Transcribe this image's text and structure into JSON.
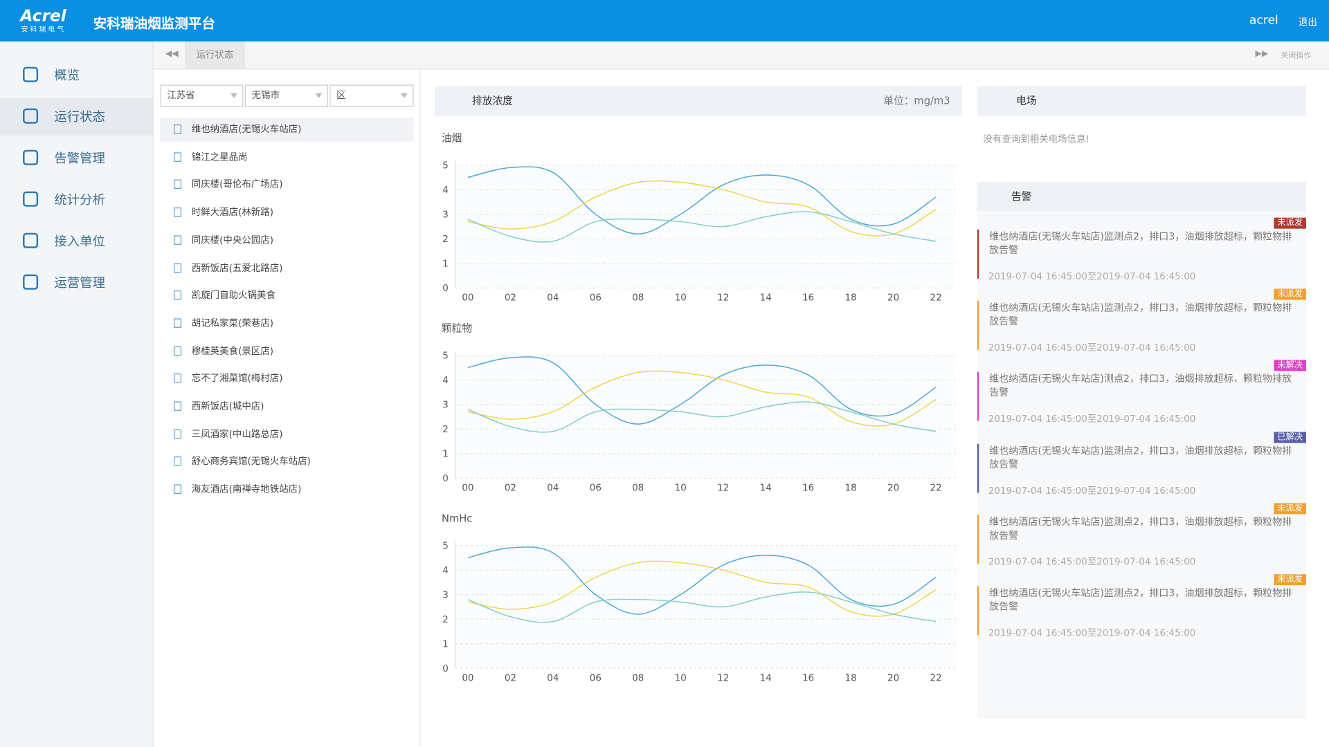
{
  "header": {
    "logo": "Acrel",
    "logo_sub": "安 科 瑞 电 气",
    "title": "安科瑞油烟监测平台",
    "user": "acrel",
    "logout": "退出"
  },
  "nav": [
    "概览",
    "运行状态",
    "告警管理",
    "统计分析",
    "接入单位",
    "运营管理"
  ],
  "tabs": {
    "current": "运行状态",
    "close": "关闭操作"
  },
  "filters": [
    "江苏省",
    "无锡市",
    "区"
  ],
  "sites": [
    "维也纳酒店(无锡火车站店)",
    "锦江之星品尚",
    "同庆楼(哥伦布广场店)",
    "时鲜大酒店(林新路)",
    "同庆楼(中央公园店)",
    "西新饭店(五爱北路店)",
    "凯旋门自助火锅美食",
    "胡记私家菜(荣巷店)",
    "穆桂英美食(景区店)",
    "忘不了湘菜馆(梅村店)",
    "西新饭店(城中店)",
    "三凤酒家(中山路总店)",
    "舒心商务宾馆(无锡火车站店)",
    "海友酒店(南禅寺地铁站店)"
  ],
  "emission": {
    "title": "排放浓度",
    "unit": "单位：mg/m3"
  },
  "chart_data": [
    {
      "type": "line",
      "title": "油烟",
      "categories": [
        "00",
        "02",
        "04",
        "06",
        "08",
        "10",
        "12",
        "14",
        "16",
        "18",
        "20",
        "22"
      ],
      "ylim": [
        0,
        5
      ],
      "yticks": [
        0,
        1,
        2,
        3,
        4,
        5
      ],
      "grid": true,
      "series": [
        {
          "color": "#4aa8d8",
          "values": [
            4.5,
            4.9,
            4.7,
            3.0,
            2.2,
            3.0,
            4.2,
            4.6,
            4.2,
            2.8,
            2.6,
            3.7
          ]
        },
        {
          "color": "#f0d44a",
          "values": [
            2.7,
            2.4,
            2.7,
            3.7,
            4.3,
            4.3,
            4.0,
            3.5,
            3.3,
            2.3,
            2.2,
            3.2
          ]
        },
        {
          "color": "#7fd0c8",
          "values": [
            2.8,
            2.1,
            1.9,
            2.7,
            2.8,
            2.7,
            2.5,
            2.9,
            3.1,
            2.7,
            2.2,
            1.9
          ]
        }
      ]
    },
    {
      "type": "line",
      "title": "颗粒物",
      "categories": [
        "00",
        "02",
        "04",
        "06",
        "08",
        "10",
        "12",
        "14",
        "16",
        "18",
        "20",
        "22"
      ],
      "ylim": [
        0,
        5
      ],
      "yticks": [
        0,
        1,
        2,
        3,
        4,
        5
      ],
      "grid": true,
      "series": [
        {
          "color": "#4aa8d8",
          "values": [
            4.5,
            4.9,
            4.7,
            3.0,
            2.2,
            3.0,
            4.2,
            4.6,
            4.2,
            2.8,
            2.6,
            3.7
          ]
        },
        {
          "color": "#f0d44a",
          "values": [
            2.7,
            2.4,
            2.7,
            3.7,
            4.3,
            4.3,
            4.0,
            3.5,
            3.3,
            2.3,
            2.2,
            3.2
          ]
        },
        {
          "color": "#7fd0c8",
          "values": [
            2.8,
            2.1,
            1.9,
            2.7,
            2.8,
            2.7,
            2.5,
            2.9,
            3.1,
            2.7,
            2.2,
            1.9
          ]
        }
      ]
    },
    {
      "type": "line",
      "title": "NmHc",
      "categories": [
        "00",
        "02",
        "04",
        "06",
        "08",
        "10",
        "12",
        "14",
        "16",
        "18",
        "20",
        "22"
      ],
      "ylim": [
        0,
        5
      ],
      "yticks": [
        0,
        1,
        2,
        3,
        4,
        5
      ],
      "grid": true,
      "series": [
        {
          "color": "#4aa8d8",
          "values": [
            4.5,
            4.9,
            4.7,
            3.0,
            2.2,
            3.0,
            4.2,
            4.6,
            4.2,
            2.8,
            2.6,
            3.7
          ]
        },
        {
          "color": "#f0d44a",
          "values": [
            2.7,
            2.4,
            2.7,
            3.7,
            4.3,
            4.3,
            4.0,
            3.5,
            3.3,
            2.3,
            2.2,
            3.2
          ]
        },
        {
          "color": "#7fd0c8",
          "values": [
            2.8,
            2.1,
            1.9,
            2.7,
            2.8,
            2.7,
            2.5,
            2.9,
            3.1,
            2.7,
            2.2,
            1.9
          ]
        }
      ]
    }
  ],
  "power": {
    "title": "电场",
    "empty": "没有查询到相关电场信息!"
  },
  "alarms": {
    "title": "告警",
    "items": [
      {
        "status": "未派发",
        "color": "#b03a2e",
        "text": "维也纳酒店(无锡火车站店)监测点2，排口3，油烟排放超标，颗粒物排放告警",
        "time": "2019-07-04 16:45:00至2019-07-04 16:45:00"
      },
      {
        "status": "未派发",
        "color": "#f0a030",
        "text": "维也纳酒店(无锡火车站店)监测点2，排口3，油烟排放超标，颗粒物排放告警",
        "time": "2019-07-04 16:45:00至2019-07-04 16:45:00"
      },
      {
        "status": "未解决",
        "color": "#e040c0",
        "text": "维也纳酒店(无锡火车站店)测点2，排口3，油烟排放超标，颗粒物排放告警",
        "time": "2019-07-04 16:45:00至2019-07-04 16:45:00"
      },
      {
        "status": "已解决",
        "color": "#5b5fa8",
        "text": "维也纳酒店(无锡火车站店)监测点2，排口3，油烟排放超标，颗粒物排放告警",
        "time": "2019-07-04 16:45:00至2019-07-04 16:45:00"
      },
      {
        "status": "未派发",
        "color": "#f0a030",
        "text": "维也纳酒店(无锡火车站店)监测点2，排口3，油烟排放超标，颗粒物排放告警",
        "time": "2019-07-04 16:45:00至2019-07-04 16:45:00"
      },
      {
        "status": "未派发",
        "color": "#f0a030",
        "text": "维也纳酒店(无锡火车站店)监测点2，排口3，油烟排放超标，颗粒物排放告警",
        "time": "2019-07-04 16:45:00至2019-07-04 16:45:00"
      }
    ]
  }
}
